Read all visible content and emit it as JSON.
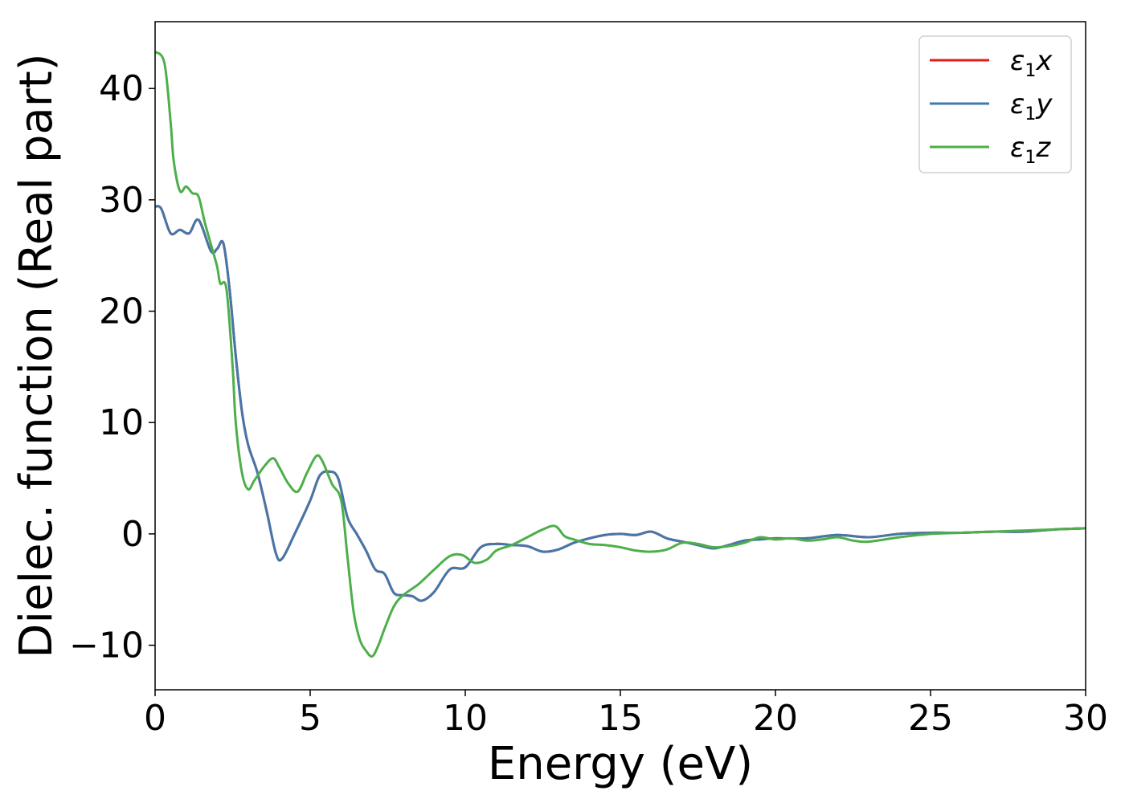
{
  "chart_data": {
    "type": "line",
    "title": "",
    "xlabel": "Energy (eV)",
    "ylabel": "Dielec. function (Real part)",
    "xlim": [
      0,
      30
    ],
    "ylim": [
      -14,
      46
    ],
    "xticks": [
      0,
      5,
      10,
      15,
      20,
      25,
      30
    ],
    "xtick_labels": [
      "0",
      "5",
      "10",
      "15",
      "20",
      "25",
      "30"
    ],
    "yticks": [
      -10,
      0,
      10,
      20,
      30,
      40
    ],
    "ytick_labels": [
      "−10",
      "0",
      "10",
      "20",
      "30",
      "40"
    ],
    "grid": false,
    "legend_position": "top-right",
    "series": [
      {
        "name": "ε1x",
        "color": "#e41a1c",
        "x": [
          0,
          0.2,
          0.5,
          0.8,
          1.1,
          1.4,
          1.8,
          2.0,
          2.2,
          2.4,
          2.6,
          2.8,
          3.0,
          3.3,
          3.6,
          3.9,
          4.1,
          4.5,
          5.0,
          5.3,
          5.6,
          5.9,
          6.2,
          6.5,
          6.8,
          7.1,
          7.4,
          7.7,
          8.0,
          8.3,
          8.6,
          9.0,
          9.5,
          10.0,
          10.5,
          11.0,
          11.5,
          12.0,
          12.5,
          13.0,
          13.5,
          14.0,
          14.5,
          15.0,
          15.5,
          16.0,
          16.5,
          17.0,
          17.5,
          18.0,
          18.5,
          19.0,
          19.5,
          20.0,
          21.0,
          22.0,
          23.0,
          24.0,
          25.0,
          26.0,
          27.0,
          28.0,
          29.0,
          30.0
        ],
        "values": [
          29.4,
          29.2,
          27.0,
          27.3,
          27.0,
          28.2,
          25.4,
          25.6,
          26.1,
          22.0,
          16.0,
          11.0,
          8.0,
          5.5,
          2.0,
          -1.8,
          -2.2,
          0.0,
          3.0,
          5.2,
          5.6,
          5.0,
          1.5,
          0.0,
          -1.5,
          -3.2,
          -3.6,
          -5.3,
          -5.5,
          -5.6,
          -6.0,
          -5.2,
          -3.2,
          -3.0,
          -1.2,
          -0.9,
          -1.0,
          -1.1,
          -1.6,
          -1.4,
          -0.8,
          -0.4,
          -0.1,
          0.0,
          -0.1,
          0.2,
          -0.4,
          -0.7,
          -1.0,
          -1.3,
          -1.0,
          -0.6,
          -0.5,
          -0.4,
          -0.4,
          -0.1,
          -0.3,
          0.0,
          0.1,
          0.1,
          0.2,
          0.2,
          0.4,
          0.5
        ]
      },
      {
        "name": "ε1y",
        "color": "#4477aa",
        "x": [
          0,
          0.2,
          0.5,
          0.8,
          1.1,
          1.4,
          1.8,
          2.0,
          2.2,
          2.4,
          2.6,
          2.8,
          3.0,
          3.3,
          3.6,
          3.9,
          4.1,
          4.5,
          5.0,
          5.3,
          5.6,
          5.9,
          6.2,
          6.5,
          6.8,
          7.1,
          7.4,
          7.7,
          8.0,
          8.3,
          8.6,
          9.0,
          9.5,
          10.0,
          10.5,
          11.0,
          11.5,
          12.0,
          12.5,
          13.0,
          13.5,
          14.0,
          14.5,
          15.0,
          15.5,
          16.0,
          16.5,
          17.0,
          17.5,
          18.0,
          18.5,
          19.0,
          19.5,
          20.0,
          21.0,
          22.0,
          23.0,
          24.0,
          25.0,
          26.0,
          27.0,
          28.0,
          29.0,
          30.0
        ],
        "values": [
          29.4,
          29.2,
          27.0,
          27.3,
          27.0,
          28.2,
          25.4,
          25.6,
          26.1,
          22.0,
          16.0,
          11.0,
          8.0,
          5.5,
          2.0,
          -1.8,
          -2.2,
          0.0,
          3.0,
          5.2,
          5.6,
          5.0,
          1.5,
          0.0,
          -1.5,
          -3.2,
          -3.6,
          -5.3,
          -5.5,
          -5.6,
          -6.0,
          -5.2,
          -3.2,
          -3.0,
          -1.2,
          -0.9,
          -1.0,
          -1.1,
          -1.6,
          -1.4,
          -0.8,
          -0.4,
          -0.1,
          0.0,
          -0.1,
          0.2,
          -0.4,
          -0.7,
          -1.0,
          -1.3,
          -1.0,
          -0.6,
          -0.5,
          -0.4,
          -0.4,
          -0.1,
          -0.3,
          0.0,
          0.1,
          0.1,
          0.2,
          0.2,
          0.4,
          0.5
        ]
      },
      {
        "name": "ε1z",
        "color": "#4daf4a",
        "x": [
          0,
          0.3,
          0.5,
          0.6,
          0.8,
          1.0,
          1.2,
          1.4,
          1.6,
          1.8,
          2.0,
          2.1,
          2.3,
          2.5,
          2.6,
          2.8,
          3.0,
          3.2,
          3.5,
          3.8,
          4.0,
          4.3,
          4.6,
          4.9,
          5.2,
          5.4,
          5.7,
          6.0,
          6.2,
          6.4,
          6.6,
          6.8,
          7.0,
          7.2,
          7.4,
          7.7,
          8.0,
          8.5,
          9.0,
          9.5,
          9.9,
          10.3,
          10.7,
          11.0,
          11.5,
          12.0,
          12.5,
          12.9,
          13.2,
          13.5,
          14.0,
          14.5,
          15.0,
          15.5,
          16.0,
          16.5,
          17.0,
          17.5,
          18.0,
          18.5,
          19.0,
          19.5,
          20.0,
          20.5,
          21.0,
          21.5,
          22.0,
          22.5,
          23.0,
          24.0,
          25.0,
          26.0,
          27.0,
          28.0,
          29.0,
          30.0
        ],
        "values": [
          43.3,
          42.3,
          37.0,
          33.5,
          30.8,
          31.2,
          30.6,
          30.3,
          28.0,
          26.0,
          24.0,
          22.5,
          22.0,
          15.0,
          10.0,
          5.5,
          4.0,
          4.8,
          6.0,
          6.8,
          6.0,
          4.5,
          3.8,
          5.5,
          7.0,
          6.5,
          4.5,
          3.0,
          -2.0,
          -7.0,
          -9.5,
          -10.5,
          -11.0,
          -10.0,
          -8.5,
          -6.5,
          -5.5,
          -4.5,
          -3.2,
          -2.0,
          -1.9,
          -2.6,
          -2.3,
          -1.5,
          -1.0,
          -0.3,
          0.4,
          0.7,
          -0.2,
          -0.5,
          -0.9,
          -1.0,
          -1.2,
          -1.5,
          -1.6,
          -1.4,
          -0.8,
          -0.9,
          -1.2,
          -1.1,
          -0.8,
          -0.3,
          -0.5,
          -0.4,
          -0.6,
          -0.5,
          -0.3,
          -0.6,
          -0.7,
          -0.3,
          0.0,
          0.1,
          0.2,
          0.3,
          0.4,
          0.5
        ]
      }
    ]
  }
}
